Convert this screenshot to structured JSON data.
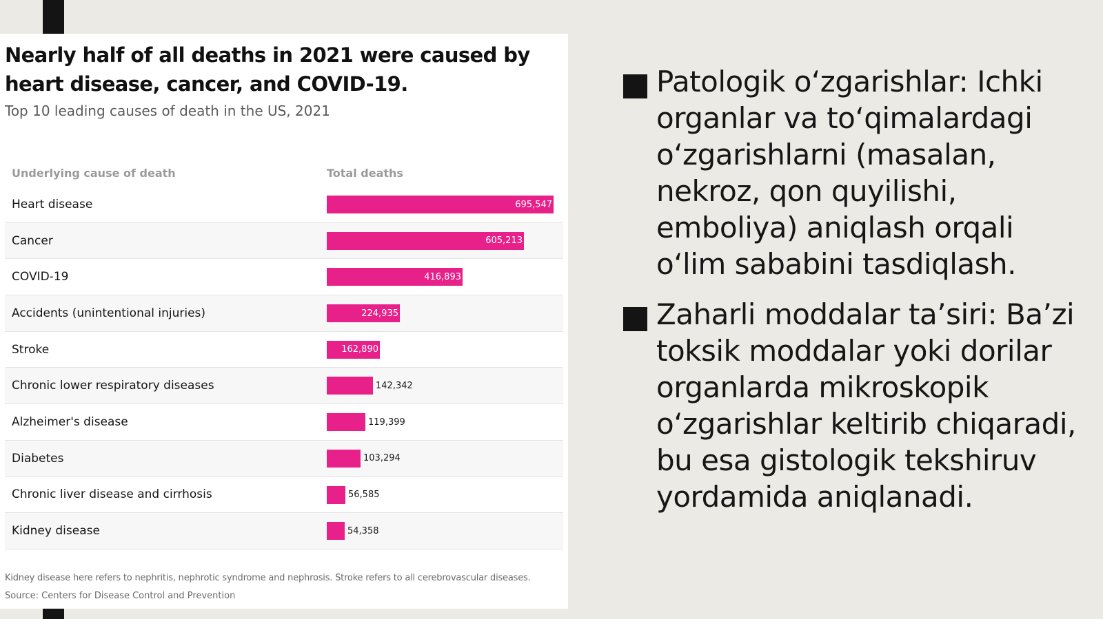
{
  "chart_data": {
    "type": "bar",
    "orientation": "horizontal",
    "title": "Nearly half of all deaths in 2021 were caused by heart disease, cancer, and COVID-19.",
    "subtitle": "Top 10 leading causes of death in the US, 2021",
    "column_headers": {
      "cause": "Underlying cause of death",
      "deaths": "Total deaths"
    },
    "categories": [
      "Heart disease",
      "Cancer",
      "COVID-19",
      "Accidents (unintentional injuries)",
      "Stroke",
      "Chronic lower respiratory diseases",
      "Alzheimer's disease",
      "Diabetes",
      "Chronic liver disease and cirrhosis",
      "Kidney disease"
    ],
    "values": [
      695547,
      605213,
      416893,
      224935,
      162890,
      142342,
      119399,
      103294,
      56585,
      54358
    ],
    "value_labels": [
      "695,547",
      "605,213",
      "416,893",
      "224,935",
      "162,890",
      "142,342",
      "119,399",
      "103,294",
      "56,585",
      "54,358"
    ],
    "xlim": [
      0,
      740000
    ],
    "bar_color": "#e8208a",
    "note": "Kidney disease here refers to nephritis, nephrotic syndrome and nephrosis. Stroke refers to all cerebrovascular diseases.",
    "source": "Source: Centers for Disease Control and Prevention"
  },
  "slide": {
    "bullets": [
      "Patologik o‘zgarishlar: Ichki organlar va to‘qimalardagi o‘zgarishlarni (masalan, nekroz, qon quyilishi, emboliya) aniqlash orqali o‘lim sababini tasdiqlash.",
      "Zaharli moddalar ta’siri: Ba’zi toksik moddalar yoki dorilar organlarda mikroskopik o‘zgarishlar keltirib chiqaradi, bu esa gistologik tekshiruv yordamida aniqlanadi."
    ]
  }
}
